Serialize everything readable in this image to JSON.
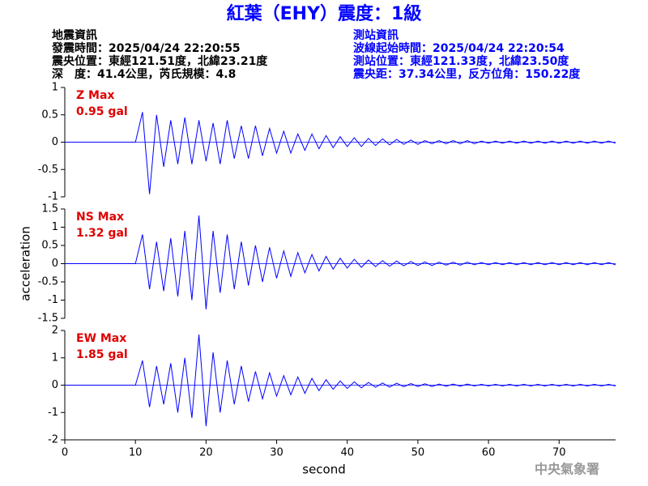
{
  "title": "紅葉（EHY）震度：1級",
  "event_info": [
    "地震資訊",
    "發震時間：2025/04/24 22:20:55",
    "震央位置：東經121.51度，北緯23.21度",
    "深　度：41.4公里，芮氏規模：4.8"
  ],
  "station_info": [
    "測站資訊",
    "波線起始時間：2025/04/24 22:20:54",
    "測站位置：東經121.33度，北緯23.50度",
    "震央距：37.34公里，反方位角：150.22度"
  ],
  "footer": "中央氣象署",
  "chart_data": [
    {
      "type": "line",
      "label": "Z Max",
      "peak": "0.95 gal",
      "color": "#0000ff",
      "ylim": [
        -1,
        1
      ],
      "yticks": [
        -1,
        -0.5,
        0,
        0.5,
        1
      ],
      "xlim": [
        0,
        78
      ],
      "x": [
        0,
        10,
        11,
        12,
        13,
        14,
        15,
        16,
        17,
        18,
        19,
        20,
        21,
        22,
        23,
        24,
        25,
        26,
        27,
        28,
        29,
        30,
        31,
        32,
        33,
        34,
        35,
        36,
        37,
        38,
        39,
        40,
        41,
        42,
        43,
        44,
        45,
        46,
        47,
        48,
        49,
        50,
        51,
        52,
        53,
        54,
        55,
        56,
        57,
        58,
        59,
        60,
        61,
        62,
        63,
        64,
        65,
        66,
        67,
        68,
        69,
        70,
        71,
        72,
        73,
        74,
        75,
        76,
        77,
        78
      ],
      "values": [
        0,
        0,
        0.55,
        -0.95,
        0.5,
        -0.45,
        0.4,
        -0.4,
        0.45,
        -0.4,
        0.4,
        -0.35,
        0.35,
        -0.4,
        0.4,
        -0.3,
        0.3,
        -0.3,
        0.3,
        -0.25,
        0.25,
        -0.2,
        0.2,
        -0.2,
        0.15,
        -0.15,
        0.15,
        -0.12,
        0.12,
        -0.1,
        0.1,
        -0.08,
        0.08,
        -0.08,
        0.07,
        -0.06,
        0.06,
        -0.05,
        0.05,
        -0.04,
        0.04,
        -0.04,
        0.03,
        -0.03,
        0.03,
        -0.03,
        0.03,
        -0.03,
        0.03,
        -0.03,
        0.02,
        -0.02,
        0.02,
        -0.02,
        0.02,
        -0.02,
        0.02,
        -0.02,
        0.02,
        -0.02,
        0.02,
        -0.02,
        0.02,
        -0.02,
        0.02,
        -0.02,
        0.02,
        -0.02,
        0.02,
        -0.02
      ]
    },
    {
      "type": "line",
      "label": "NS Max",
      "peak": "1.32 gal",
      "color": "#0000ff",
      "ylabel": "acceleration",
      "ylim": [
        -1.5,
        1.5
      ],
      "yticks": [
        -1.5,
        -1,
        -0.5,
        0,
        0.5,
        1,
        1.5
      ],
      "xlim": [
        0,
        78
      ],
      "x": [
        0,
        10,
        11,
        12,
        13,
        14,
        15,
        16,
        17,
        18,
        19,
        20,
        21,
        22,
        23,
        24,
        25,
        26,
        27,
        28,
        29,
        30,
        31,
        32,
        33,
        34,
        35,
        36,
        37,
        38,
        39,
        40,
        41,
        42,
        43,
        44,
        45,
        46,
        47,
        48,
        49,
        50,
        51,
        52,
        53,
        54,
        55,
        56,
        57,
        58,
        59,
        60,
        61,
        62,
        63,
        64,
        65,
        66,
        67,
        68,
        69,
        70,
        71,
        72,
        73,
        74,
        75,
        76,
        77,
        78
      ],
      "values": [
        0,
        0,
        0.8,
        -0.7,
        0.6,
        -0.75,
        0.7,
        -0.9,
        0.9,
        -1.0,
        1.32,
        -1.25,
        0.9,
        -0.8,
        0.8,
        -0.7,
        0.6,
        -0.6,
        0.5,
        -0.5,
        0.45,
        -0.4,
        0.35,
        -0.35,
        0.3,
        -0.25,
        0.25,
        -0.2,
        0.2,
        -0.15,
        0.15,
        -0.12,
        0.12,
        -0.1,
        0.1,
        -0.08,
        0.08,
        -0.07,
        0.07,
        -0.06,
        0.06,
        -0.05,
        0.05,
        -0.05,
        0.04,
        -0.04,
        0.04,
        -0.04,
        0.04,
        -0.03,
        0.03,
        -0.03,
        0.03,
        -0.03,
        0.03,
        -0.03,
        0.03,
        -0.03,
        0.03,
        -0.03,
        0.03,
        -0.03,
        0.03,
        -0.03,
        0.03,
        -0.03,
        0.03,
        -0.03,
        0.03,
        -0.03
      ]
    },
    {
      "type": "line",
      "label": "EW Max",
      "peak": "1.85 gal",
      "color": "#0000ff",
      "xlabel": "second",
      "ylim": [
        -2,
        2
      ],
      "yticks": [
        -2,
        -1,
        0,
        1,
        2
      ],
      "xlim": [
        0,
        78
      ],
      "xticks": [
        0,
        10,
        20,
        30,
        40,
        50,
        60,
        70
      ],
      "x": [
        0,
        10,
        11,
        12,
        13,
        14,
        15,
        16,
        17,
        18,
        19,
        20,
        21,
        22,
        23,
        24,
        25,
        26,
        27,
        28,
        29,
        30,
        31,
        32,
        33,
        34,
        35,
        36,
        37,
        38,
        39,
        40,
        41,
        42,
        43,
        44,
        45,
        46,
        47,
        48,
        49,
        50,
        51,
        52,
        53,
        54,
        55,
        56,
        57,
        58,
        59,
        60,
        61,
        62,
        63,
        64,
        65,
        66,
        67,
        68,
        69,
        70,
        71,
        72,
        73,
        74,
        75,
        76,
        77,
        78
      ],
      "values": [
        0,
        0,
        0.9,
        -0.8,
        0.7,
        -0.7,
        0.8,
        -1.0,
        1.0,
        -1.2,
        1.85,
        -1.5,
        1.2,
        -1.0,
        0.9,
        -0.7,
        0.7,
        -0.6,
        0.5,
        -0.5,
        0.45,
        -0.4,
        0.35,
        -0.35,
        0.3,
        -0.3,
        0.25,
        -0.2,
        0.2,
        -0.15,
        0.15,
        -0.12,
        0.12,
        -0.1,
        0.1,
        -0.08,
        0.08,
        -0.07,
        0.07,
        -0.06,
        0.06,
        -0.05,
        0.05,
        -0.05,
        0.04,
        -0.04,
        0.04,
        -0.04,
        0.04,
        -0.03,
        0.03,
        -0.03,
        0.03,
        -0.03,
        0.03,
        -0.03,
        0.03,
        -0.03,
        0.03,
        -0.03,
        0.03,
        -0.03,
        0.03,
        -0.03,
        0.03,
        -0.03,
        0.03,
        -0.03,
        0.03,
        -0.03
      ]
    }
  ]
}
